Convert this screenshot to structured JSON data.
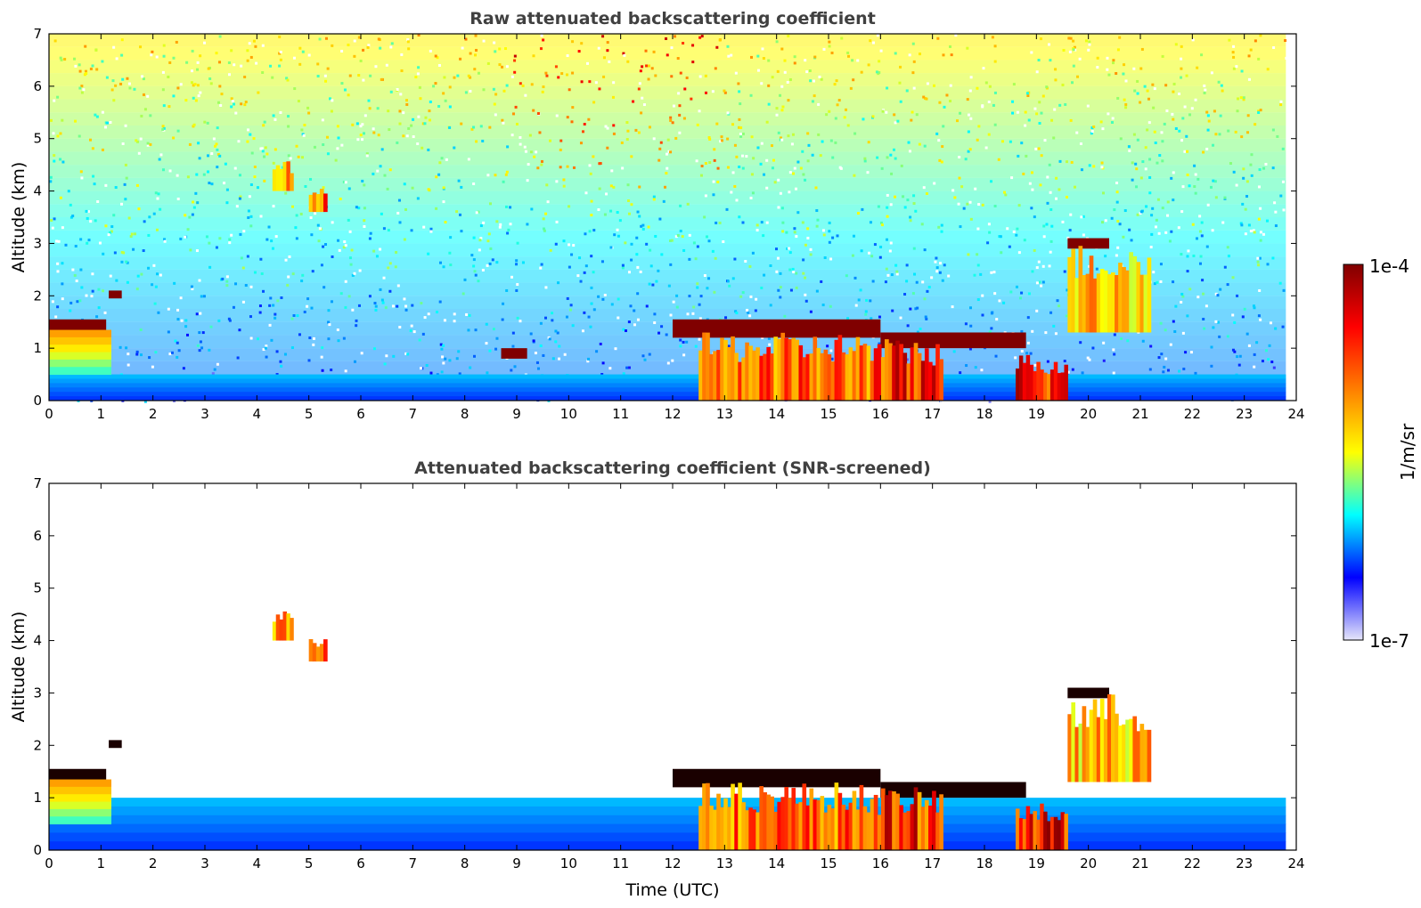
{
  "chart_data": [
    {
      "type": "heatmap",
      "title": "Raw attenuated backscattering coefficient",
      "xlabel": "",
      "ylabel": "Altitude (km)",
      "xlim": [
        0,
        24
      ],
      "ylim": [
        0,
        7
      ],
      "xticks": [
        "0",
        "1",
        "2",
        "3",
        "4",
        "5",
        "6",
        "7",
        "8",
        "9",
        "10",
        "11",
        "12",
        "13",
        "14",
        "15",
        "16",
        "17",
        "18",
        "19",
        "20",
        "21",
        "22",
        "23",
        "24"
      ],
      "yticks": [
        "0",
        "1",
        "2",
        "3",
        "4",
        "5",
        "6",
        "7"
      ],
      "data_end_hour": 23.8,
      "features": [
        {
          "name": "near-surface aerosol layer",
          "x": [
            0,
            23.8
          ],
          "y": [
            0,
            0.5
          ],
          "level": 0.12
        },
        {
          "name": "cloud top",
          "x": [
            0,
            1.1
          ],
          "y": [
            1.3,
            1.55
          ],
          "level": 1.0
        },
        {
          "name": "cloud top",
          "x": [
            1.15,
            1.4
          ],
          "y": [
            1.95,
            2.1
          ],
          "level": 1.0
        },
        {
          "name": "boundary layer",
          "x": [
            0,
            1.2
          ],
          "y": [
            0.5,
            1.35
          ],
          "level": 0.7
        },
        {
          "name": "aerosol plume",
          "x": [
            4.3,
            4.7
          ],
          "y": [
            4.0,
            4.6
          ],
          "level": 0.72
        },
        {
          "name": "aerosol plume",
          "x": [
            5.0,
            5.35
          ],
          "y": [
            3.6,
            4.1
          ],
          "level": 0.76
        },
        {
          "name": "cloud top",
          "x": [
            12.0,
            16.0
          ],
          "y": [
            1.2,
            1.55
          ],
          "level": 1.0
        },
        {
          "name": "cloud top",
          "x": [
            16.0,
            18.8
          ],
          "y": [
            1.0,
            1.3
          ],
          "level": 1.0
        },
        {
          "name": "cloud base",
          "x": [
            8.7,
            9.2
          ],
          "y": [
            0.8,
            1.0
          ],
          "level": 1.0
        },
        {
          "name": "convective cloud",
          "x": [
            12.5,
            15.8
          ],
          "y": [
            0.0,
            1.3
          ],
          "level": 0.75
        },
        {
          "name": "convective cloud",
          "x": [
            15.8,
            17.2
          ],
          "y": [
            0.0,
            1.2
          ],
          "level": 0.82
        },
        {
          "name": "convective cloud",
          "x": [
            18.6,
            19.6
          ],
          "y": [
            0.0,
            0.9
          ],
          "level": 0.85
        },
        {
          "name": "cloud top",
          "x": [
            19.6,
            20.4
          ],
          "y": [
            2.9,
            3.1
          ],
          "level": 1.0
        },
        {
          "name": "elevated cloud",
          "x": [
            19.6,
            21.2
          ],
          "y": [
            1.3,
            3.0
          ],
          "level": 0.65
        }
      ]
    },
    {
      "type": "heatmap",
      "title": "Attenuated backscattering coefficient (SNR-screened)",
      "xlabel": "Time (UTC)",
      "ylabel": "Altitude (km)",
      "xlim": [
        0,
        24
      ],
      "ylim": [
        0,
        7
      ],
      "xticks": [
        "0",
        "1",
        "2",
        "3",
        "4",
        "5",
        "6",
        "7",
        "8",
        "9",
        "10",
        "11",
        "12",
        "13",
        "14",
        "15",
        "16",
        "17",
        "18",
        "19",
        "20",
        "21",
        "22",
        "23",
        "24"
      ],
      "yticks": [
        "0",
        "1",
        "2",
        "3",
        "4",
        "5",
        "6",
        "7"
      ],
      "data_end_hour": 23.8,
      "features": [
        {
          "name": "near-surface aerosol layer",
          "x": [
            0,
            23.8
          ],
          "y": [
            0,
            1.0
          ],
          "level": 0.12
        },
        {
          "name": "cloud top",
          "x": [
            0,
            1.1
          ],
          "y": [
            1.3,
            1.55
          ],
          "level": 1.05
        },
        {
          "name": "cloud top",
          "x": [
            1.15,
            1.4
          ],
          "y": [
            1.95,
            2.1
          ],
          "level": 1.05
        },
        {
          "name": "boundary layer",
          "x": [
            0,
            1.2
          ],
          "y": [
            0.5,
            1.35
          ],
          "level": 0.7
        },
        {
          "name": "aerosol plume",
          "x": [
            4.3,
            4.7
          ],
          "y": [
            4.0,
            4.6
          ],
          "level": 0.72
        },
        {
          "name": "aerosol plume",
          "x": [
            5.0,
            5.35
          ],
          "y": [
            3.6,
            4.1
          ],
          "level": 0.76
        },
        {
          "name": "cloud top",
          "x": [
            12.0,
            16.0
          ],
          "y": [
            1.2,
            1.55
          ],
          "level": 1.05
        },
        {
          "name": "cloud top",
          "x": [
            16.0,
            18.8
          ],
          "y": [
            1.0,
            1.3
          ],
          "level": 1.05
        },
        {
          "name": "convective cloud",
          "x": [
            12.5,
            15.8
          ],
          "y": [
            0.0,
            1.3
          ],
          "level": 0.75
        },
        {
          "name": "convective cloud",
          "x": [
            15.8,
            17.2
          ],
          "y": [
            0.0,
            1.2
          ],
          "level": 0.82
        },
        {
          "name": "convective cloud",
          "x": [
            18.6,
            19.6
          ],
          "y": [
            0.0,
            0.9
          ],
          "level": 0.85
        },
        {
          "name": "cloud top",
          "x": [
            19.6,
            20.4
          ],
          "y": [
            2.9,
            3.1
          ],
          "level": 1.05
        },
        {
          "name": "elevated cloud",
          "x": [
            19.6,
            21.2
          ],
          "y": [
            1.3,
            3.0
          ],
          "level": 0.65
        }
      ]
    }
  ],
  "colorbar": {
    "label": "1/m/sr",
    "max_label": "1e-4",
    "min_label": "1e-7",
    "colormap": "jet",
    "colors": [
      "#e6e6fa",
      "#0000ff",
      "#00ffff",
      "#ffff00",
      "#ff7f00",
      "#ff0000",
      "#800000"
    ]
  }
}
